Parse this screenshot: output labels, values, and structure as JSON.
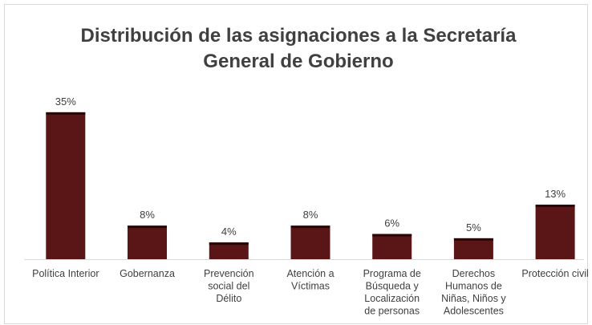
{
  "chart_data": {
    "type": "bar",
    "title_lines": [
      "Distribución de las asignaciones a la Secretaría",
      "General de Gobierno"
    ],
    "categories": [
      [
        "Política Interior"
      ],
      [
        "Gobernanza"
      ],
      [
        "Prevención",
        "social del",
        "Délito"
      ],
      [
        "Atención a",
        "Víctimas"
      ],
      [
        "Programa de",
        "Búsqueda y",
        "Localización",
        "de personas"
      ],
      [
        "Derechos",
        "Humanos de",
        "Niñas, Niños y",
        "Adolescentes"
      ],
      [
        "Protección civil"
      ]
    ],
    "values": [
      35,
      8,
      4,
      8,
      6,
      5,
      13
    ],
    "data_labels": [
      "35%",
      "8%",
      "4%",
      "8%",
      "6%",
      "5%",
      "13%"
    ],
    "ylim": [
      0,
      40
    ],
    "grid": false,
    "legend": "none",
    "colors": {
      "bar_fill": "#5a1616",
      "bar_top": "#2a0606",
      "text": "#404040",
      "axis": "#d9d9d9"
    }
  }
}
